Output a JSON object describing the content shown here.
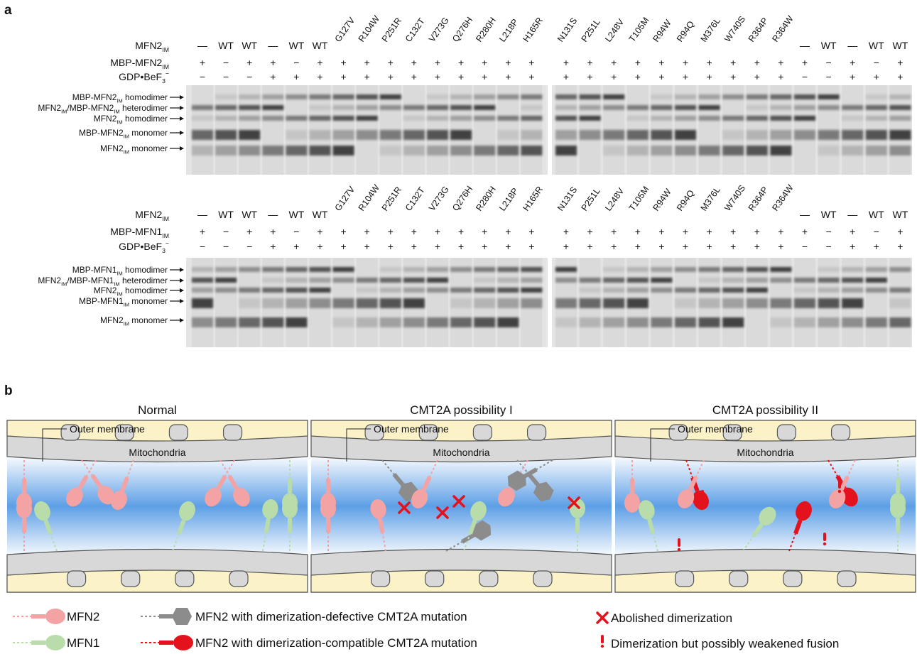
{
  "panel_a": {
    "label": "a",
    "gels": [
      {
        "rows": [
          {
            "label": [
              {
                "t": "MFN2"
              },
              {
                "sub": "IM"
              }
            ],
            "values": [
              "—",
              "WT",
              "WT",
              "—",
              "WT",
              "WT",
              "G127V",
              "R104W",
              "P251R",
              "C132T",
              "V273G",
              "Q276H",
              "R280H",
              "L218P",
              "H165R",
              "N131S",
              "P251L",
              "L248V",
              "T105M",
              "R94W",
              "R94Q",
              "M376L",
              "W740S",
              "R364P",
              "R364W",
              "—",
              "WT",
              "—",
              "WT",
              "WT"
            ]
          },
          {
            "label": [
              {
                "t": "MBP-MFN2"
              },
              {
                "sub": "IM"
              }
            ],
            "values": [
              "+",
              "−",
              "+",
              "+",
              "−",
              "+",
              "+",
              "+",
              "+",
              "+",
              "+",
              "+",
              "+",
              "+",
              "+",
              "+",
              "+",
              "+",
              "+",
              "+",
              "+",
              "+",
              "+",
              "+",
              "+",
              "+",
              "−",
              "+",
              "−",
              "+"
            ]
          },
          {
            "label": [
              {
                "t": "GDP•BeF"
              },
              {
                "sub": "3"
              },
              {
                "sup": "−"
              }
            ],
            "values": [
              "−",
              "−",
              "−",
              "+",
              "+",
              "+",
              "+",
              "+",
              "+",
              "+",
              "+",
              "+",
              "+",
              "+",
              "+",
              "+",
              "+",
              "+",
              "+",
              "+",
              "+",
              "+",
              "+",
              "+",
              "+",
              "−",
              "−",
              "+",
              "+",
              "+"
            ]
          }
        ],
        "bands": [
          [
            {
              "t": "MBP-MFN2"
            },
            {
              "sub": "IM"
            },
            {
              "t": " homodimer"
            }
          ],
          [
            {
              "t": "MFN2"
            },
            {
              "sub": "IM"
            },
            {
              "t": "/MBP-MFN2"
            },
            {
              "sub": "IM"
            },
            {
              "t": " heterodimer"
            }
          ],
          [
            {
              "t": "MFN2"
            },
            {
              "sub": "IM"
            },
            {
              "t": " homodimer"
            }
          ],
          [
            {
              "t": "MBP-MFN2"
            },
            {
              "sub": "IM"
            },
            {
              "t": " monomer"
            }
          ],
          [
            {
              "t": "MFN2"
            },
            {
              "sub": "IM"
            },
            {
              "t": " monomer"
            }
          ]
        ]
      },
      {
        "rows": [
          {
            "label": [
              {
                "t": "MFN2"
              },
              {
                "sub": "IM"
              }
            ],
            "values": [
              "—",
              "WT",
              "WT",
              "—",
              "WT",
              "WT",
              "G127V",
              "R104W",
              "P251R",
              "C132T",
              "V273G",
              "Q276H",
              "R280H",
              "L218P",
              "H165R",
              "N131S",
              "P251L",
              "L248V",
              "T105M",
              "R94W",
              "R94Q",
              "M376L",
              "W740S",
              "R364P",
              "R364W",
              "—",
              "WT",
              "—",
              "WT",
              "WT"
            ]
          },
          {
            "label": [
              {
                "t": "MBP-MFN1"
              },
              {
                "sub": "IM"
              }
            ],
            "values": [
              "+",
              "−",
              "+",
              "+",
              "−",
              "+",
              "+",
              "+",
              "+",
              "+",
              "+",
              "+",
              "+",
              "+",
              "+",
              "+",
              "+",
              "+",
              "+",
              "+",
              "+",
              "+",
              "+",
              "+",
              "+",
              "+",
              "−",
              "+",
              "−",
              "+"
            ]
          },
          {
            "label": [
              {
                "t": "GDP•BeF"
              },
              {
                "sub": "3"
              },
              {
                "sup": "−"
              }
            ],
            "values": [
              "−",
              "−",
              "−",
              "+",
              "+",
              "+",
              "+",
              "+",
              "+",
              "+",
              "+",
              "+",
              "+",
              "+",
              "+",
              "+",
              "+",
              "+",
              "+",
              "+",
              "+",
              "+",
              "+",
              "+",
              "+",
              "−",
              "−",
              "+",
              "+",
              "+"
            ]
          }
        ],
        "bands": [
          [
            {
              "t": "MBP-MFN1"
            },
            {
              "sub": "IM"
            },
            {
              "t": " homodimer"
            }
          ],
          [
            {
              "t": "MFN2"
            },
            {
              "sub": "IM"
            },
            {
              "t": "/MBP-MFN1"
            },
            {
              "sub": "IM"
            },
            {
              "t": " heterodimer"
            }
          ],
          [
            {
              "t": "MFN2"
            },
            {
              "sub": "IM"
            },
            {
              "t": " homodimer"
            }
          ],
          [
            {
              "t": "MBP-MFN1"
            },
            {
              "sub": "IM"
            },
            {
              "t": " monomer"
            }
          ],
          [
            {
              "t": "MFN2"
            },
            {
              "sub": "IM"
            },
            {
              "t": " monomer"
            }
          ]
        ]
      }
    ]
  },
  "panel_b": {
    "label": "b",
    "scenarios": [
      {
        "title": "Normal",
        "outer_membrane": "Outer membrane",
        "mitochondria": "Mitochondria"
      },
      {
        "title": "CMT2A possibility I",
        "outer_membrane": "Outer membrane",
        "mitochondria": "Mitochondria"
      },
      {
        "title": "CMT2A possibility II",
        "outer_membrane": "Outer membrane",
        "mitochondria": "Mitochondria"
      }
    ],
    "legend": [
      "MFN2",
      "MFN1",
      "MFN2 with dimerization-defective CMT2A mutation",
      "MFN2 with dimerization-compatible CMT2A mutation",
      "Abolished dimerization",
      "Dimerization but possibly weakened fusion"
    ]
  }
}
